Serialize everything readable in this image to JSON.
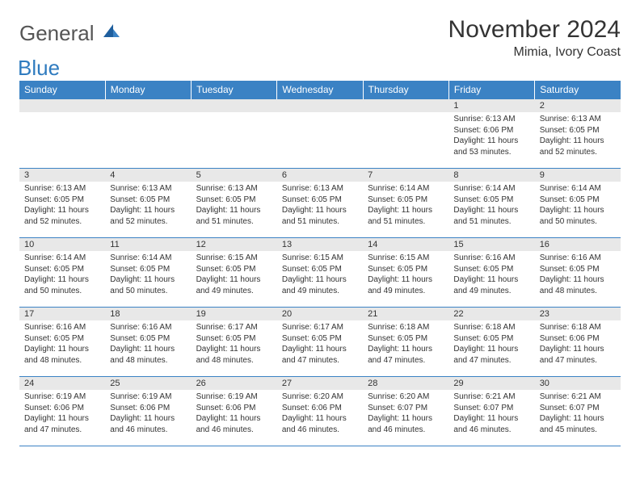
{
  "logo": {
    "part1": "General",
    "part2": "Blue"
  },
  "title": "November 2024",
  "location": "Mimia, Ivory Coast",
  "colors": {
    "header_bg": "#3b82c4",
    "header_fg": "#ffffff",
    "daynum_bg": "#e8e8e8",
    "grid_line": "#3b82c4",
    "text": "#333333",
    "logo_gray": "#555555",
    "logo_blue": "#2f7bbf"
  },
  "fonts": {
    "family": "Arial, Helvetica, sans-serif",
    "title_pt": 30,
    "location_pt": 16,
    "header_pt": 12,
    "daynum_pt": 11,
    "body_pt": 10
  },
  "days_of_week": [
    "Sunday",
    "Monday",
    "Tuesday",
    "Wednesday",
    "Thursday",
    "Friday",
    "Saturday"
  ],
  "weeks": [
    [
      {
        "empty": true
      },
      {
        "empty": true
      },
      {
        "empty": true
      },
      {
        "empty": true
      },
      {
        "empty": true
      },
      {
        "num": "1",
        "sunrise": "Sunrise: 6:13 AM",
        "sunset": "Sunset: 6:06 PM",
        "daylight": "Daylight: 11 hours and 53 minutes."
      },
      {
        "num": "2",
        "sunrise": "Sunrise: 6:13 AM",
        "sunset": "Sunset: 6:05 PM",
        "daylight": "Daylight: 11 hours and 52 minutes."
      }
    ],
    [
      {
        "num": "3",
        "sunrise": "Sunrise: 6:13 AM",
        "sunset": "Sunset: 6:05 PM",
        "daylight": "Daylight: 11 hours and 52 minutes."
      },
      {
        "num": "4",
        "sunrise": "Sunrise: 6:13 AM",
        "sunset": "Sunset: 6:05 PM",
        "daylight": "Daylight: 11 hours and 52 minutes."
      },
      {
        "num": "5",
        "sunrise": "Sunrise: 6:13 AM",
        "sunset": "Sunset: 6:05 PM",
        "daylight": "Daylight: 11 hours and 51 minutes."
      },
      {
        "num": "6",
        "sunrise": "Sunrise: 6:13 AM",
        "sunset": "Sunset: 6:05 PM",
        "daylight": "Daylight: 11 hours and 51 minutes."
      },
      {
        "num": "7",
        "sunrise": "Sunrise: 6:14 AM",
        "sunset": "Sunset: 6:05 PM",
        "daylight": "Daylight: 11 hours and 51 minutes."
      },
      {
        "num": "8",
        "sunrise": "Sunrise: 6:14 AM",
        "sunset": "Sunset: 6:05 PM",
        "daylight": "Daylight: 11 hours and 51 minutes."
      },
      {
        "num": "9",
        "sunrise": "Sunrise: 6:14 AM",
        "sunset": "Sunset: 6:05 PM",
        "daylight": "Daylight: 11 hours and 50 minutes."
      }
    ],
    [
      {
        "num": "10",
        "sunrise": "Sunrise: 6:14 AM",
        "sunset": "Sunset: 6:05 PM",
        "daylight": "Daylight: 11 hours and 50 minutes."
      },
      {
        "num": "11",
        "sunrise": "Sunrise: 6:14 AM",
        "sunset": "Sunset: 6:05 PM",
        "daylight": "Daylight: 11 hours and 50 minutes."
      },
      {
        "num": "12",
        "sunrise": "Sunrise: 6:15 AM",
        "sunset": "Sunset: 6:05 PM",
        "daylight": "Daylight: 11 hours and 49 minutes."
      },
      {
        "num": "13",
        "sunrise": "Sunrise: 6:15 AM",
        "sunset": "Sunset: 6:05 PM",
        "daylight": "Daylight: 11 hours and 49 minutes."
      },
      {
        "num": "14",
        "sunrise": "Sunrise: 6:15 AM",
        "sunset": "Sunset: 6:05 PM",
        "daylight": "Daylight: 11 hours and 49 minutes."
      },
      {
        "num": "15",
        "sunrise": "Sunrise: 6:16 AM",
        "sunset": "Sunset: 6:05 PM",
        "daylight": "Daylight: 11 hours and 49 minutes."
      },
      {
        "num": "16",
        "sunrise": "Sunrise: 6:16 AM",
        "sunset": "Sunset: 6:05 PM",
        "daylight": "Daylight: 11 hours and 48 minutes."
      }
    ],
    [
      {
        "num": "17",
        "sunrise": "Sunrise: 6:16 AM",
        "sunset": "Sunset: 6:05 PM",
        "daylight": "Daylight: 11 hours and 48 minutes."
      },
      {
        "num": "18",
        "sunrise": "Sunrise: 6:16 AM",
        "sunset": "Sunset: 6:05 PM",
        "daylight": "Daylight: 11 hours and 48 minutes."
      },
      {
        "num": "19",
        "sunrise": "Sunrise: 6:17 AM",
        "sunset": "Sunset: 6:05 PM",
        "daylight": "Daylight: 11 hours and 48 minutes."
      },
      {
        "num": "20",
        "sunrise": "Sunrise: 6:17 AM",
        "sunset": "Sunset: 6:05 PM",
        "daylight": "Daylight: 11 hours and 47 minutes."
      },
      {
        "num": "21",
        "sunrise": "Sunrise: 6:18 AM",
        "sunset": "Sunset: 6:05 PM",
        "daylight": "Daylight: 11 hours and 47 minutes."
      },
      {
        "num": "22",
        "sunrise": "Sunrise: 6:18 AM",
        "sunset": "Sunset: 6:05 PM",
        "daylight": "Daylight: 11 hours and 47 minutes."
      },
      {
        "num": "23",
        "sunrise": "Sunrise: 6:18 AM",
        "sunset": "Sunset: 6:06 PM",
        "daylight": "Daylight: 11 hours and 47 minutes."
      }
    ],
    [
      {
        "num": "24",
        "sunrise": "Sunrise: 6:19 AM",
        "sunset": "Sunset: 6:06 PM",
        "daylight": "Daylight: 11 hours and 47 minutes."
      },
      {
        "num": "25",
        "sunrise": "Sunrise: 6:19 AM",
        "sunset": "Sunset: 6:06 PM",
        "daylight": "Daylight: 11 hours and 46 minutes."
      },
      {
        "num": "26",
        "sunrise": "Sunrise: 6:19 AM",
        "sunset": "Sunset: 6:06 PM",
        "daylight": "Daylight: 11 hours and 46 minutes."
      },
      {
        "num": "27",
        "sunrise": "Sunrise: 6:20 AM",
        "sunset": "Sunset: 6:06 PM",
        "daylight": "Daylight: 11 hours and 46 minutes."
      },
      {
        "num": "28",
        "sunrise": "Sunrise: 6:20 AM",
        "sunset": "Sunset: 6:07 PM",
        "daylight": "Daylight: 11 hours and 46 minutes."
      },
      {
        "num": "29",
        "sunrise": "Sunrise: 6:21 AM",
        "sunset": "Sunset: 6:07 PM",
        "daylight": "Daylight: 11 hours and 46 minutes."
      },
      {
        "num": "30",
        "sunrise": "Sunrise: 6:21 AM",
        "sunset": "Sunset: 6:07 PM",
        "daylight": "Daylight: 11 hours and 45 minutes."
      }
    ]
  ]
}
